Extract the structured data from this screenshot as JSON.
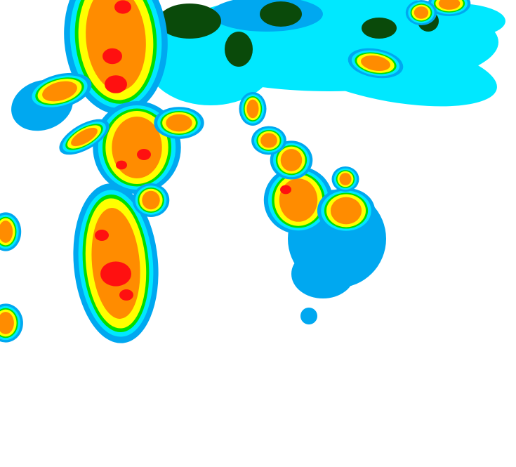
{
  "map": {
    "type": "radar-reflectivity",
    "background": "#ffffff",
    "palette": {
      "light_blue": "#00a8f0",
      "cyan": "#00e8ff",
      "green": "#00e000",
      "dark_green": "#0a4a0a",
      "yellow": "#ffff00",
      "orange": "#ff8c00",
      "red": "#ff1010"
    }
  }
}
